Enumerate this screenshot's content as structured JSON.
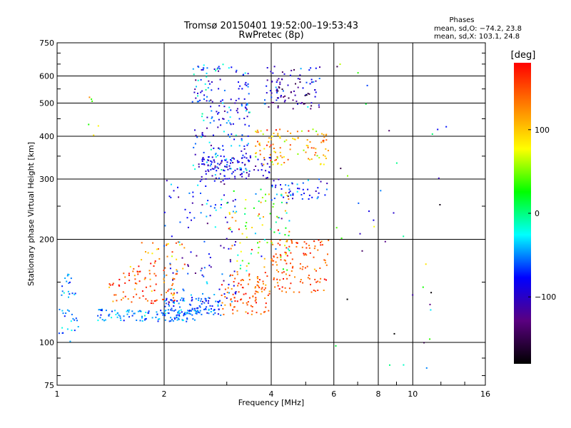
{
  "chart_data": {
    "type": "scatter",
    "title": "Tromsø 20150401 19:52:00–19:53:43",
    "subtitle": "RwPretec (8p)",
    "xlabel": "Frequency [MHz]",
    "ylabel": "Stationary phase Virtual Height [km]",
    "x_scale": "log",
    "y_scale": "log",
    "xlim": [
      1,
      16
    ],
    "ylim": [
      75,
      750
    ],
    "x_ticks": [
      "1",
      "2",
      "4",
      "6",
      "8",
      "10",
      "16"
    ],
    "y_ticks": [
      "75",
      "100",
      "200",
      "300",
      "400",
      "500",
      "600",
      "750"
    ],
    "grid": true,
    "stats_title": "Phases",
    "stats_o": "mean, sd,O: −74.2, 23.8",
    "stats_x": "mean, sd,X: 103.1, 24.8",
    "colorbar": {
      "label": "[deg]",
      "range": [
        -180,
        180
      ],
      "ticks": [
        "100",
        "0",
        "−100"
      ],
      "colormap": [
        "#000000",
        "#5a0080",
        "#0000ff",
        "#00ffff",
        "#00ff00",
        "#ffff00",
        "#ff8000",
        "#ff0000"
      ]
    },
    "clusters": [
      {
        "fmin": 1.0,
        "fmax": 1.15,
        "hmin": 100,
        "hmax": 160,
        "phase": -50,
        "phase_sd": 15,
        "n": 40
      },
      {
        "fmin": 1.3,
        "fmax": 2.5,
        "hmin": 115,
        "hmax": 125,
        "phase": -50,
        "phase_sd": 15,
        "n": 120
      },
      {
        "fmin": 1.4,
        "fmax": 2.2,
        "hmin": 130,
        "hmax": 160,
        "phase": 150,
        "phase_sd": 25,
        "n": 80
      },
      {
        "fmin": 1.6,
        "fmax": 2.3,
        "hmin": 160,
        "hmax": 200,
        "phase": 130,
        "phase_sd": 40,
        "n": 40
      },
      {
        "fmin": 2.0,
        "fmax": 2.9,
        "hmin": 120,
        "hmax": 135,
        "phase": -60,
        "phase_sd": 15,
        "n": 100
      },
      {
        "fmin": 2.0,
        "fmax": 3.2,
        "hmin": 130,
        "hmax": 300,
        "phase": -80,
        "phase_sd": 30,
        "n": 120
      },
      {
        "fmin": 2.4,
        "fmax": 3.5,
        "hmin": 300,
        "hmax": 650,
        "phase": -70,
        "phase_sd": 30,
        "n": 220
      },
      {
        "fmin": 2.5,
        "fmax": 4.0,
        "hmin": 300,
        "hmax": 350,
        "phase": -95,
        "phase_sd": 15,
        "n": 90
      },
      {
        "fmin": 2.9,
        "fmax": 4.0,
        "hmin": 120,
        "hmax": 160,
        "phase": 150,
        "phase_sd": 20,
        "n": 100
      },
      {
        "fmin": 3.0,
        "fmax": 4.5,
        "hmin": 160,
        "hmax": 280,
        "phase": 60,
        "phase_sd": 80,
        "n": 100
      },
      {
        "fmin": 4.0,
        "fmax": 5.8,
        "hmin": 140,
        "hmax": 200,
        "phase": 150,
        "phase_sd": 20,
        "n": 120
      },
      {
        "fmin": 3.6,
        "fmax": 5.8,
        "hmin": 330,
        "hmax": 420,
        "phase": 110,
        "phase_sd": 30,
        "n": 110
      },
      {
        "fmin": 4.0,
        "fmax": 5.8,
        "hmin": 260,
        "hmax": 300,
        "phase": -80,
        "phase_sd": 30,
        "n": 50
      },
      {
        "fmin": 3.8,
        "fmax": 5.5,
        "hmin": 480,
        "hmax": 640,
        "phase": -100,
        "phase_sd": 30,
        "n": 100
      },
      {
        "fmin": 6.0,
        "fmax": 12.5,
        "hmin": 80,
        "hmax": 680,
        "phase": -50,
        "phase_sd": 90,
        "n": 40
      },
      {
        "fmin": 1.2,
        "fmax": 1.4,
        "hmin": 370,
        "hmax": 570,
        "phase": 60,
        "phase_sd": 60,
        "n": 6
      }
    ]
  }
}
